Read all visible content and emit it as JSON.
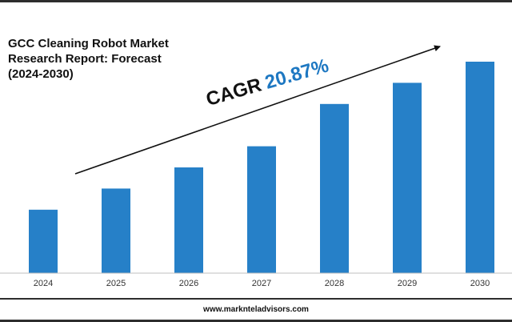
{
  "header": {
    "title_lines": [
      "GCC Cleaning Robot Market",
      "Research Report: Forecast",
      "(2024-2030)"
    ]
  },
  "annotation": {
    "cagr_label": "CAGR",
    "cagr_value": "20.87%"
  },
  "footer": {
    "website": "www.marknteladvisors.com"
  },
  "colors": {
    "bar": "#2680c8",
    "accent": "#1e78c2",
    "text": "#111111"
  },
  "chart_data": {
    "type": "bar",
    "title": "GCC Cleaning Robot Market Research Report: Forecast (2024-2030)",
    "categories": [
      "2024",
      "2025",
      "2026",
      "2027",
      "2028",
      "2029",
      "2030"
    ],
    "values": [
      30,
      40,
      50,
      60,
      80,
      90,
      100
    ],
    "xlabel": "",
    "ylabel": "",
    "ylim": [
      0,
      100
    ],
    "grid": false,
    "legend": "none",
    "annotations": [
      "CAGR 20.87%"
    ]
  }
}
